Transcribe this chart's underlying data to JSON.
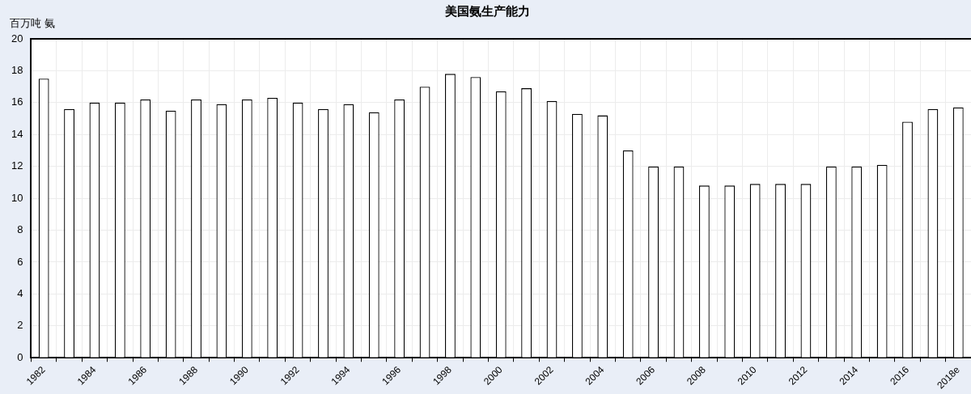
{
  "chart_data": {
    "type": "bar",
    "title": "美国氨生产能力",
    "ylabel": "百万吨 氨",
    "categories": [
      "1982",
      null,
      "1984",
      null,
      "1986",
      null,
      "1988",
      null,
      "1990",
      null,
      "1992",
      null,
      "1994",
      null,
      "1996",
      null,
      "1998",
      null,
      "2000",
      null,
      "2002",
      null,
      "2004",
      null,
      "2006",
      null,
      "2008",
      null,
      "2010",
      null,
      "2012",
      null,
      "2014",
      null,
      "2016",
      null,
      "2018e"
    ],
    "values": [
      17.5,
      15.6,
      16.0,
      16.0,
      16.2,
      15.5,
      16.2,
      15.9,
      16.2,
      16.3,
      16.0,
      15.6,
      15.9,
      15.4,
      16.2,
      17.0,
      17.8,
      17.6,
      16.7,
      16.9,
      16.1,
      15.3,
      15.2,
      13.0,
      12.0,
      12.0,
      10.8,
      10.8,
      10.9,
      10.9,
      10.9,
      12.0,
      12.0,
      12.1,
      14.8,
      15.6,
      15.7
    ],
    "color": "#ffffff",
    "ylim": [
      0,
      20
    ],
    "yticks": [
      0,
      2,
      4,
      6,
      8,
      10,
      12,
      14,
      16,
      18,
      20
    ],
    "grid": true
  }
}
